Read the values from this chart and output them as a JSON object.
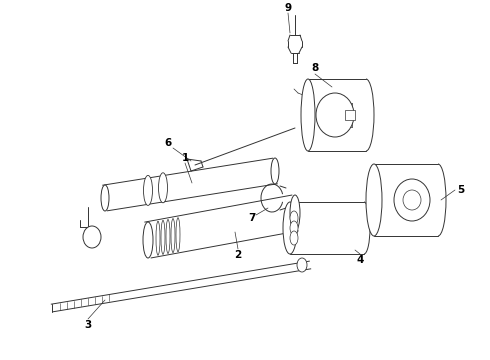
{
  "background_color": "#ffffff",
  "line_color": "#333333",
  "label_color": "#000000",
  "figsize": [
    4.9,
    3.6
  ],
  "dpi": 100
}
